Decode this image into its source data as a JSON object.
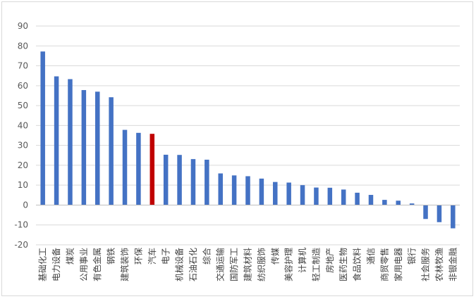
{
  "chart_data": {
    "type": "bar",
    "title": "",
    "xlabel": "",
    "ylabel": "",
    "ylim": [
      -20,
      90
    ],
    "yticks": [
      90,
      80,
      70,
      60,
      50,
      40,
      30,
      20,
      10,
      0,
      -10,
      -20
    ],
    "grid": true,
    "legend": "none",
    "colors": {
      "default": "#4472C4",
      "highlight": "#C00000",
      "grid": "#d9d9d9",
      "axis": "#bfbfbf"
    },
    "highlight_category": "汽车",
    "categories": [
      "基础化工",
      "电力设备",
      "煤炭",
      "公用事业",
      "有色金属",
      "钢铁",
      "建筑装饰",
      "环保",
      "汽车",
      "电子",
      "机械设备",
      "石油石化",
      "综合",
      "交通运输",
      "国防军工",
      "建筑材料",
      "纺织服饰",
      "传媒",
      "美容护理",
      "计算机",
      "轻工制造",
      "房地产",
      "医药生物",
      "食品饮料",
      "通信",
      "商贸零售",
      "家用电器",
      "银行",
      "社会服务",
      "农林牧渔",
      "非银金融"
    ],
    "values": [
      77.2,
      64.7,
      63.3,
      57.8,
      57.0,
      54.2,
      37.8,
      36.3,
      35.8,
      25.3,
      25.2,
      23.1,
      22.8,
      15.9,
      14.9,
      14.5,
      13.3,
      11.6,
      11.3,
      10.0,
      8.8,
      8.7,
      7.8,
      6.2,
      5.1,
      2.6,
      2.2,
      0.8,
      -7.0,
      -8.6,
      -11.7
    ]
  }
}
